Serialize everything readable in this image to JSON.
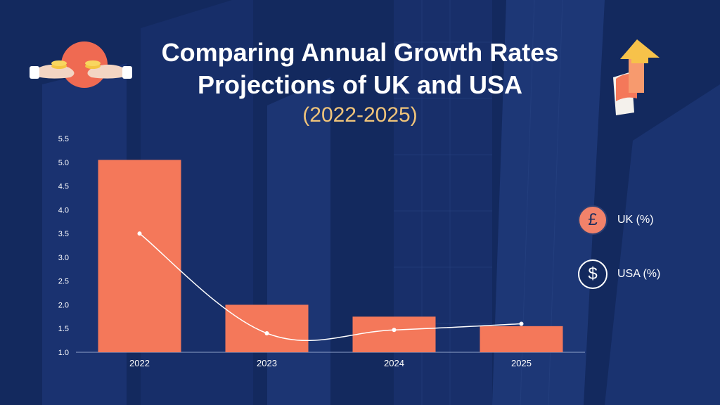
{
  "title_line1": "Comparing Annual Growth Rates",
  "title_line2": "Projections of UK and USA",
  "subtitle": "(2022-2025)",
  "colors": {
    "background": "#13295e",
    "bar": "#f4785a",
    "line": "#ffffff",
    "axis_text": "#ffffff",
    "subtitle": "#f0c47a"
  },
  "legend": [
    {
      "icon": "pound-icon",
      "symbol": "£",
      "label": "UK (%)"
    },
    {
      "icon": "dollar-icon",
      "symbol": "$",
      "label": "USA (%)"
    }
  ],
  "chart_data": {
    "type": "bar",
    "title": "Comparing Annual Growth Rates Projections of UK and USA (2022-2025)",
    "categories": [
      "2022",
      "2023",
      "2024",
      "2025"
    ],
    "series": [
      {
        "name": "UK (%)",
        "kind": "bar",
        "values": [
          5.05,
          2.0,
          1.75,
          1.55
        ]
      },
      {
        "name": "USA (%)",
        "kind": "line",
        "values": [
          3.5,
          1.4,
          1.47,
          1.6
        ]
      }
    ],
    "xlabel": "",
    "ylabel": "",
    "ylim": [
      1.0,
      5.5
    ],
    "yticks": [
      "1.0",
      "1.5",
      "2.0",
      "2.5",
      "3.0",
      "3.5",
      "4.0",
      "4.5",
      "5.0",
      "5.5"
    ],
    "grid": false,
    "legend_position": "right"
  }
}
